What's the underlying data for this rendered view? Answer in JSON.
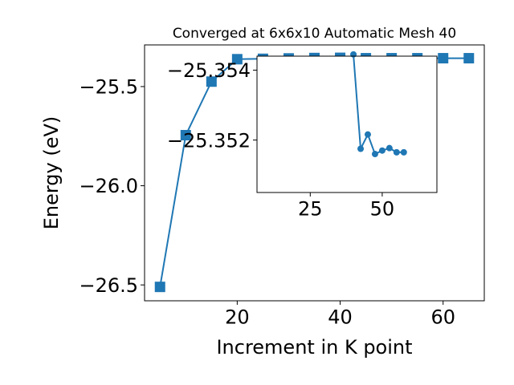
{
  "chart_data": [
    {
      "type": "line",
      "role": "main",
      "title": "Converged at 6x6x10 Automatic Mesh 40",
      "xlabel": "Increment in K point",
      "ylabel": "Energy (eV)",
      "xlim": [
        2,
        68
      ],
      "ylim": [
        -26.58,
        -25.29
      ],
      "xticks": [
        20,
        40,
        60
      ],
      "yticks": [
        -25.5,
        -26.0,
        -26.5
      ],
      "ytick_labels": [
        "−25.5",
        "−26.0",
        "−26.5"
      ],
      "grid": false,
      "marker": "square",
      "color": "#1f77b4",
      "x": [
        5,
        10,
        15,
        20,
        25,
        30,
        35,
        40,
        45,
        50,
        55,
        60,
        65
      ],
      "y": [
        -26.51,
        -25.745,
        -25.475,
        -25.362,
        -25.36,
        -25.358,
        -25.356,
        -25.355,
        -25.357,
        -25.357,
        -25.357,
        -25.357,
        -25.357
      ]
    },
    {
      "type": "line",
      "role": "inset",
      "xlim": [
        6.5,
        69
      ],
      "ylim": [
        -25.3505,
        -25.3544
      ],
      "xticks": [
        25,
        50
      ],
      "yticks": [
        -25.354,
        -25.352
      ],
      "ytick_labels": [
        "−25.354",
        "−25.352"
      ],
      "grid": false,
      "marker": "circle",
      "color": "#1f77b4",
      "x": [
        40,
        42.5,
        45,
        47.5,
        50,
        52.5,
        55,
        57.5
      ],
      "y": [
        -25.35445,
        -25.35175,
        -25.35216,
        -25.3516,
        -25.3517,
        -25.35177,
        -25.35165,
        -25.35165
      ]
    }
  ]
}
